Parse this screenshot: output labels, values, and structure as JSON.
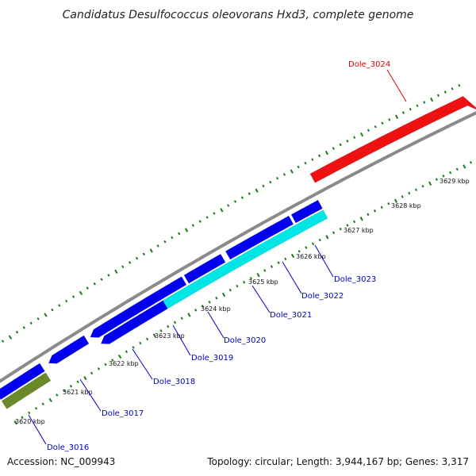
{
  "title": "Candidatus Desulfococcus oleovorans Hxd3, complete genome",
  "footer": {
    "accession": "Accession: NC_009943",
    "summary": "Topology: circular; Length: 3,944,167 bp; Genes: 3,317"
  },
  "colors": {
    "backbone": "#8a8a8a",
    "tick": "#1a7a1a",
    "gene_forward": "#0000ee",
    "gene_reverse_cyan": "#00e5e5",
    "gene_olive": "#6a8a2a",
    "highlight_gene": "#ee1111",
    "label_blue": "#0000cc",
    "label_red": "#dd0000"
  },
  "ticks": [
    "3620 kbp",
    "3621 kbp",
    "3622 kbp",
    "3623 kbp",
    "3624 kbp",
    "3625 kbp",
    "3626 kbp",
    "3627 kbp",
    "3628 kbp",
    "3629 kbp"
  ],
  "genes": [
    "Dole_3016",
    "Dole_3017",
    "Dole_3018",
    "Dole_3019",
    "Dole_3020",
    "Dole_3021",
    "Dole_3022",
    "Dole_3023",
    "Dole_3024"
  ]
}
